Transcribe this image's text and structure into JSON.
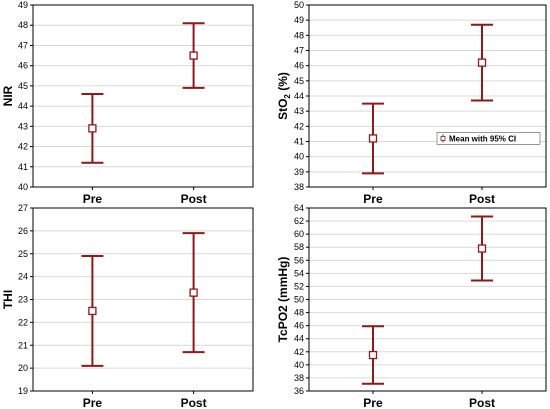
{
  "colors": {
    "series": "#8b1a1a",
    "grid": "#d9d9d9",
    "axis": "#000000"
  },
  "chart_data": [
    {
      "type": "errorbar",
      "ylabel": "NIR",
      "categories": [
        "Pre",
        "Post"
      ],
      "mean": [
        42.9,
        46.5
      ],
      "lower": [
        41.2,
        44.9
      ],
      "upper": [
        44.6,
        48.1
      ],
      "ylim": [
        40,
        49
      ],
      "yticks": [
        40,
        41,
        42,
        43,
        44,
        45,
        46,
        47,
        48,
        49
      ],
      "grid": true
    },
    {
      "type": "errorbar",
      "ylabel_parts": [
        "StO",
        "2",
        " (%)"
      ],
      "categories": [
        "Pre",
        "Post"
      ],
      "mean": [
        41.2,
        46.2
      ],
      "lower": [
        38.9,
        43.7
      ],
      "upper": [
        43.5,
        48.7
      ],
      "ylim": [
        38,
        50
      ],
      "yticks": [
        38,
        39,
        40,
        41,
        42,
        43,
        44,
        45,
        46,
        47,
        48,
        49,
        50
      ],
      "grid": true,
      "legend": {
        "label": "Mean with 95% CI",
        "placement": "right-middle"
      }
    },
    {
      "type": "errorbar",
      "ylabel": "THI",
      "categories": [
        "Pre",
        "Post"
      ],
      "mean": [
        22.5,
        23.3
      ],
      "lower": [
        20.1,
        20.7
      ],
      "upper": [
        24.9,
        25.9
      ],
      "ylim": [
        19,
        27
      ],
      "yticks": [
        19,
        20,
        21,
        22,
        23,
        24,
        25,
        26,
        27
      ],
      "grid": true
    },
    {
      "type": "errorbar",
      "ylabel": "TcPO2 (mmHg)",
      "categories": [
        "Pre",
        "Post"
      ],
      "mean": [
        41.5,
        57.8
      ],
      "lower": [
        37.1,
        52.9
      ],
      "upper": [
        45.9,
        62.7
      ],
      "ylim": [
        36,
        64
      ],
      "yticks": [
        36,
        38,
        40,
        42,
        44,
        46,
        48,
        50,
        52,
        54,
        56,
        58,
        60,
        62,
        64
      ],
      "grid": true
    }
  ]
}
